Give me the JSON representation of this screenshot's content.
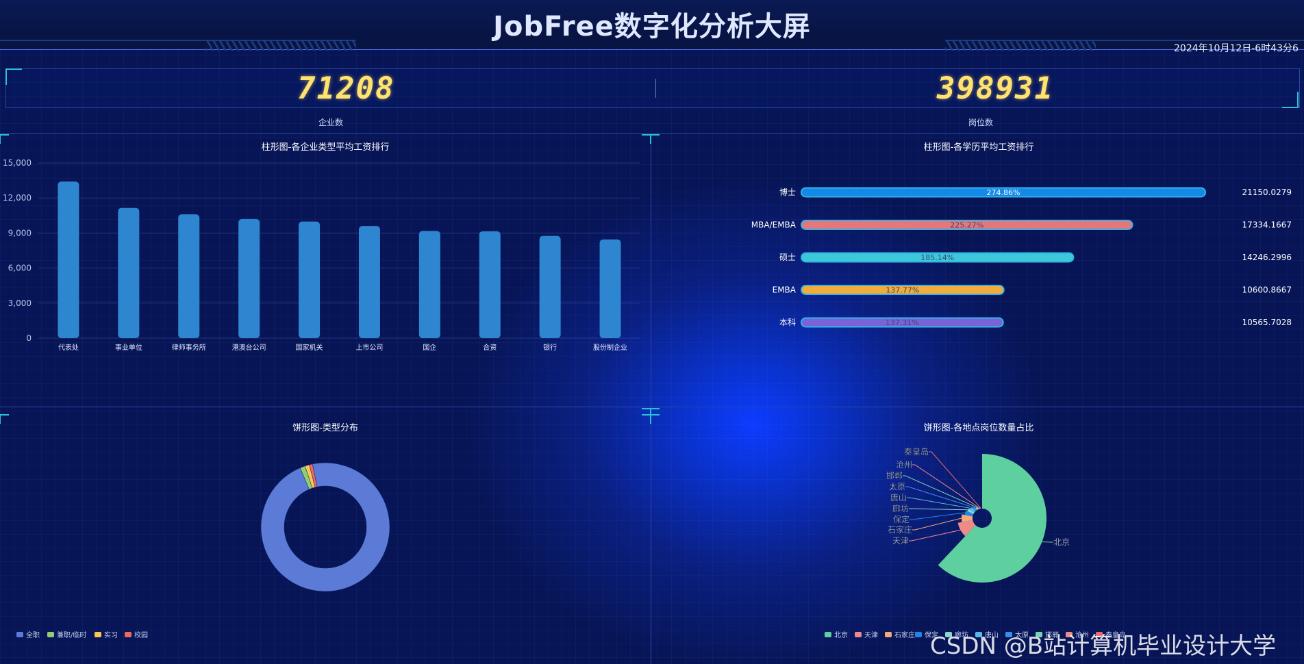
{
  "header": {
    "title": "JobFree数字化分析大屏",
    "datetime": "2024年10月12日-6时43分6"
  },
  "kpis": [
    {
      "value": "71208",
      "label": "企业数"
    },
    {
      "value": "398931",
      "label": "岗位数"
    }
  ],
  "panels": {
    "company_salary": {
      "title": "柱形图-各企业类型平均工资排行",
      "chart_data": {
        "type": "bar",
        "title": "柱形图-各企业类型平均工资排行",
        "categories": [
          "代表处",
          "事业单位",
          "律师事务所",
          "港澳台公司",
          "国家机关",
          "上市公司",
          "国企",
          "合资",
          "银行",
          "股份制企业"
        ],
        "values": [
          13400,
          11150,
          10600,
          10200,
          9980,
          9600,
          9180,
          9150,
          8750,
          8450
        ],
        "ylim": [
          0,
          15000
        ],
        "yticks": [
          "0",
          "3,000",
          "6,000",
          "9,000",
          "12,000",
          "15,000"
        ],
        "color": "#2e86d0",
        "grid": true
      }
    },
    "edu_salary": {
      "title": "柱形图-各学历平均工资排行",
      "chart_data": {
        "type": "bar",
        "title": "柱形图-各学历平均工资排行",
        "categories": [
          "博士",
          "MBA/EMBA",
          "硕士",
          "EMBA",
          "本科"
        ],
        "values": [
          21150.0279,
          17334.1667,
          14246.2996,
          10600.8667,
          10565.7028
        ],
        "value_labels": [
          "21150.0279",
          "17334.1667",
          "14246.2996",
          "10600.8667",
          "10565.7028"
        ],
        "percent_labels": [
          "274.86%",
          "225.27%",
          "185.14%",
          "137.77%",
          "137.31%"
        ],
        "percents": [
          274.86,
          225.27,
          185.14,
          137.77,
          137.31
        ],
        "colors": [
          "#1489e8",
          "#e8757a",
          "#3cc8d8",
          "#f0ac3c",
          "#7a62d8"
        ]
      }
    },
    "type_pie": {
      "title": "饼形图-类型分布",
      "chart_data": {
        "type": "pie",
        "title": "饼形图-类型分布",
        "categories": [
          "全职",
          "兼职/临时",
          "实习",
          "校园"
        ],
        "values": [
          96.8,
          1.3,
          1.1,
          0.8
        ],
        "colors": [
          "#5b7bd6",
          "#93cc74",
          "#f9c851",
          "#ee6666"
        ],
        "legend_position": "bottom-left"
      }
    },
    "location_pie": {
      "title": "饼形图-各地点岗位数量占比",
      "chart_data": {
        "type": "pie",
        "title": "饼形图-各地点岗位数量占比",
        "categories": [
          "北京",
          "天津",
          "石家庄",
          "保定",
          "廊坊",
          "唐山",
          "太原",
          "邯郸",
          "沧州",
          "秦皇岛"
        ],
        "values": [
          62,
          10,
          6,
          4,
          3,
          3,
          3,
          3,
          3,
          3
        ],
        "colors": [
          "#5ecf9e",
          "#ee8a8a",
          "#f4a97a",
          "#1f86e8",
          "#8ad6c8",
          "#58b8e8",
          "#3a8df0",
          "#76d6b4",
          "#f08a8a",
          "#e86a6a"
        ],
        "legend_labels": [
          "北京",
          "天津",
          "石家庄",
          "保定",
          "廊坊",
          "唐山",
          "太原",
          "邯郸",
          "沧州",
          "秦皇岛"
        ],
        "legend_position": "bottom-right"
      }
    }
  },
  "watermark": "CSDN @B站计算机毕业设计大学"
}
